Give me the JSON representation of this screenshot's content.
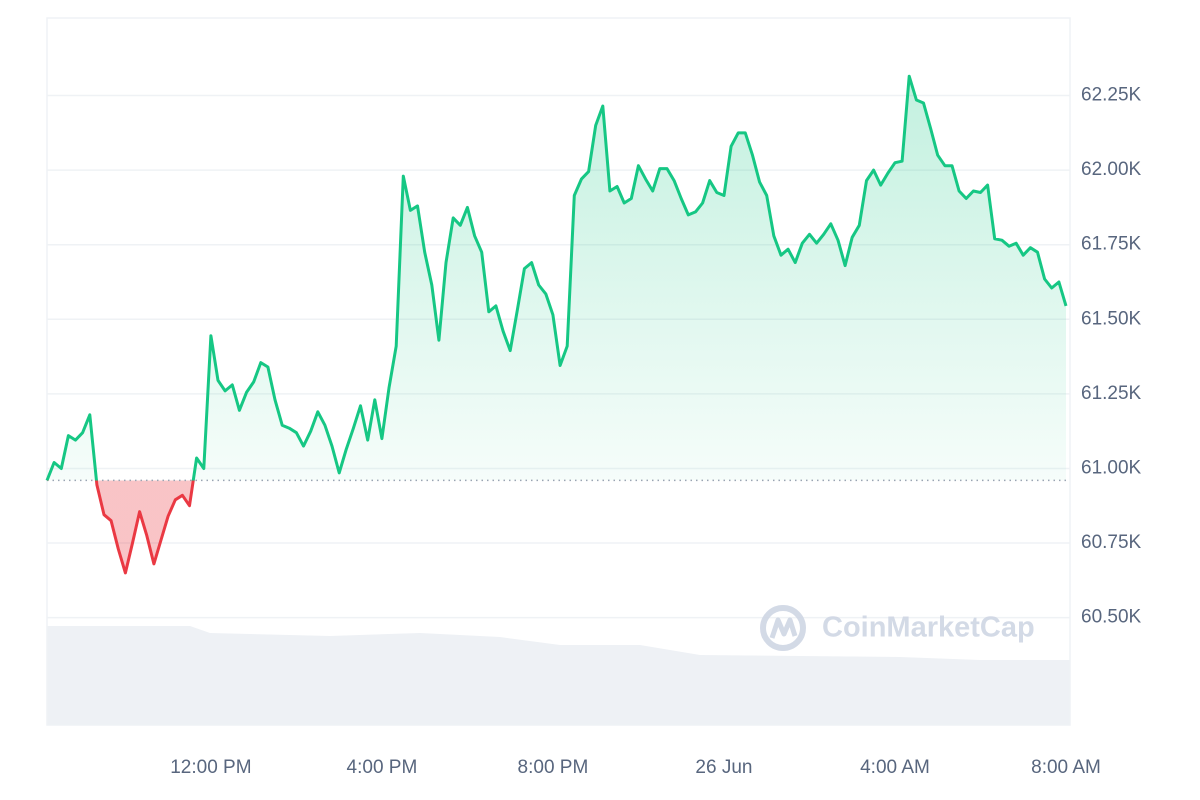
{
  "chart_data": {
    "type": "line",
    "watermark": "CoinMarketCap",
    "categories": [
      null,
      null,
      null,
      null,
      null,
      null,
      null,
      null,
      null,
      null,
      null,
      null,
      null,
      null,
      null,
      null,
      null,
      null,
      null,
      null,
      null,
      null,
      null,
      "12:00 PM",
      null,
      null,
      null,
      null,
      null,
      null,
      null,
      null,
      null,
      null,
      null,
      null,
      null,
      null,
      null,
      null,
      null,
      null,
      null,
      null,
      null,
      null,
      null,
      "4:00 PM",
      null,
      null,
      null,
      null,
      null,
      null,
      null,
      null,
      null,
      null,
      null,
      null,
      null,
      null,
      null,
      null,
      null,
      null,
      null,
      null,
      null,
      null,
      null,
      "8:00 PM",
      null,
      null,
      null,
      null,
      null,
      null,
      null,
      null,
      null,
      null,
      null,
      null,
      null,
      null,
      null,
      null,
      null,
      null,
      null,
      null,
      null,
      null,
      null,
      "26 Jun",
      null,
      null,
      null,
      null,
      null,
      null,
      null,
      null,
      null,
      null,
      null,
      null,
      null,
      null,
      null,
      null,
      null,
      null,
      null,
      null,
      null,
      null,
      null,
      "4:00 AM",
      null,
      null,
      null,
      null,
      null,
      null,
      null,
      null,
      null,
      null,
      null,
      null,
      null,
      null,
      null,
      null,
      null,
      null,
      null,
      null,
      null,
      null,
      null,
      "8:00 AM"
    ],
    "series": [
      {
        "values": [
          60960,
          61020,
          61000,
          61110,
          61095,
          61120,
          61180,
          60945,
          60845,
          60825,
          60730,
          60650,
          60750,
          60855,
          60775,
          60680,
          60760,
          60840,
          60895,
          60910,
          60875,
          61035,
          61000,
          61445,
          61295,
          61260,
          61280,
          61195,
          61255,
          61290,
          61355,
          61340,
          61230,
          61145,
          61135,
          61120,
          61075,
          61125,
          61190,
          61145,
          61075,
          60985,
          61065,
          61135,
          61210,
          61095,
          61230,
          61100,
          61270,
          61410,
          61980,
          61865,
          61880,
          61725,
          61615,
          61430,
          61690,
          61840,
          61815,
          61875,
          61780,
          61725,
          61525,
          61545,
          61460,
          61395,
          61530,
          61670,
          61690,
          61615,
          61585,
          61515,
          61345,
          61410,
          61915,
          61970,
          61995,
          62150,
          62215,
          61930,
          61945,
          61890,
          61905,
          62015,
          61970,
          61930,
          62005,
          62005,
          61965,
          61905,
          61850,
          61860,
          61890,
          61965,
          61925,
          61915,
          62080,
          62125,
          62125,
          62050,
          61960,
          61915,
          61780,
          61715,
          61735,
          61690,
          61755,
          61785,
          61755,
          61785,
          61820,
          61765,
          61680,
          61775,
          61815,
          61965,
          62000,
          61950,
          61990,
          62025,
          62030,
          62315,
          62235,
          62225,
          62140,
          62050,
          62015,
          62015,
          61930,
          61905,
          61930,
          61925,
          61950,
          61770,
          61765,
          61745,
          61755,
          61715,
          61740,
          61725,
          61635,
          61605,
          61625,
          61545
        ],
        "color": "#16c784",
        "below_color": "#ea3943"
      }
    ],
    "ylim": [
      60140,
      62510
    ],
    "yticks": [
      {
        "value": 60500,
        "label": "60.50K"
      },
      {
        "value": 60750,
        "label": "60.75K"
      },
      {
        "value": 61000,
        "label": "61.00K"
      },
      {
        "value": 61250,
        "label": "61.25K"
      },
      {
        "value": 61500,
        "label": "61.50K"
      },
      {
        "value": 61750,
        "label": "61.75K"
      },
      {
        "value": 62000,
        "label": "62.00K"
      },
      {
        "value": 62250,
        "label": "62.25K"
      }
    ],
    "grid": true
  }
}
